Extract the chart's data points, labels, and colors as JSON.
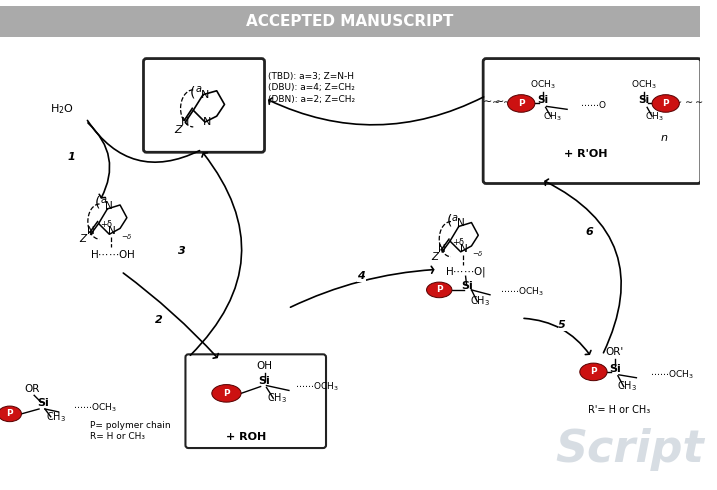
{
  "title": "ACCEPTED MANUSCRIPT",
  "title_bg": "#aaaaaa",
  "title_color": "white",
  "bg_color": "white",
  "guan_text": [
    "(TBD): a=3; Z=N-H",
    "(DBU): a=4; Z=CH₂",
    "(DBN): a=2; Z=CH₂"
  ],
  "plus_ROH": "+ ROH",
  "plus_RPOH": "+ R'OH",
  "r_prime": "R'= H or CH₃",
  "legend1": "P= polymer chain",
  "legend2": "R= H or CH₃",
  "watermark_color": "#b0bcc8"
}
